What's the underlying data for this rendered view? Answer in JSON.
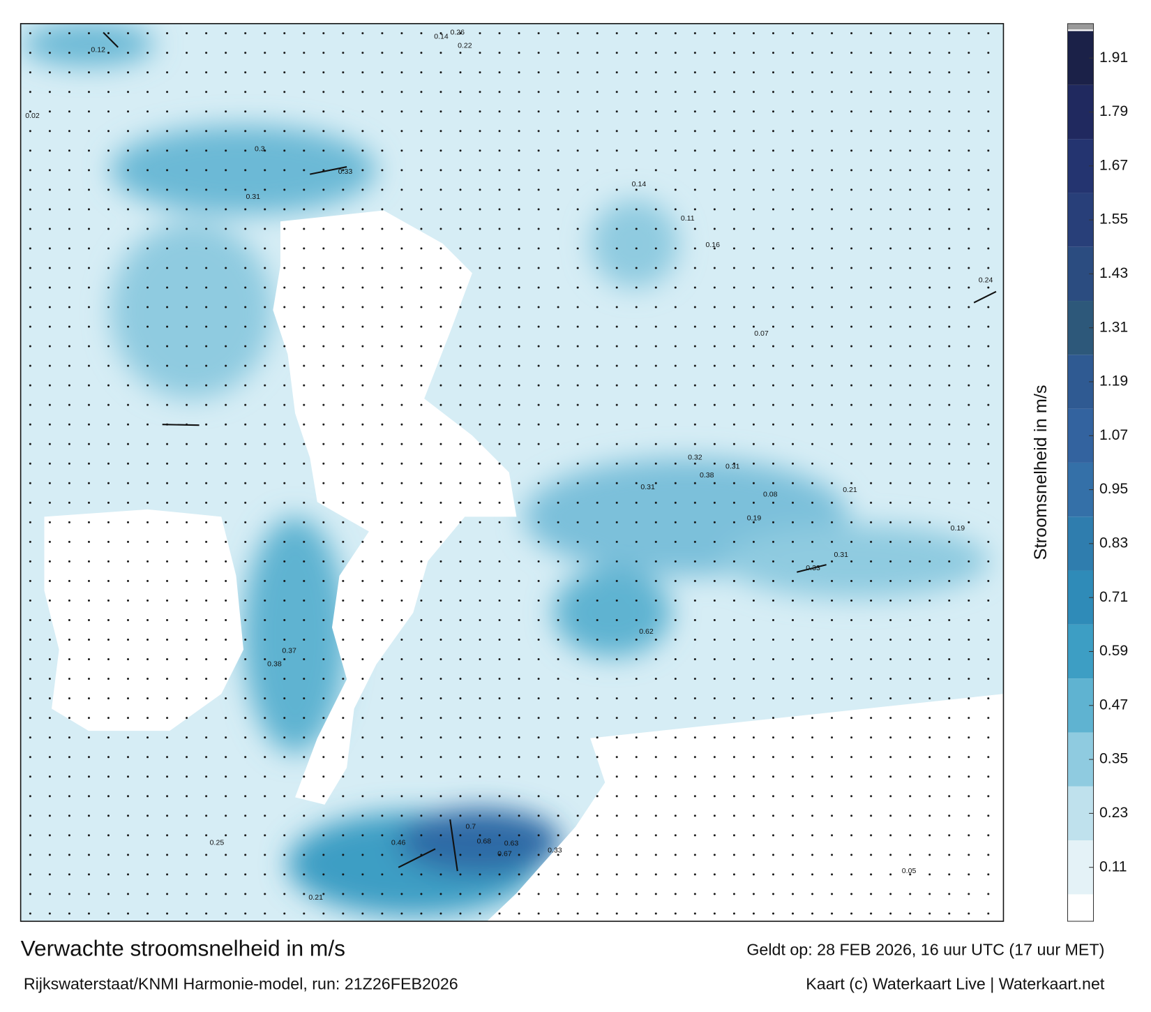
{
  "map": {
    "title": "Verwachte stroomsnelheid in m/s",
    "subtitle": "Rijkswaterstaat/KNMI Harmonie-model, run: 21Z26FEB2026",
    "valid_time": "Geldt op: 28 FEB 2026, 16 uur UTC (17 uur MET)",
    "credit": "Kaart (c) Waterkaart Live | Waterkaart.net",
    "colorbar": {
      "label": "Stroomsnelheid in m/s",
      "lim": [
        -0.01,
        1.98
      ],
      "ticks": [
        0.11,
        0.23,
        0.35,
        0.47,
        0.59,
        0.71,
        0.83,
        0.95,
        1.07,
        1.19,
        1.31,
        1.43,
        1.55,
        1.67,
        1.79,
        1.91
      ],
      "colors": [
        "#e4f2f7",
        "#bfe1ed",
        "#8fcbe0",
        "#5fb3d1",
        "#3d9ec4",
        "#2f8bb8",
        "#2f7dae",
        "#3470a8",
        "#33639f",
        "#2f5a92",
        "#2d587a",
        "#2b4c80",
        "#283f79",
        "#243470",
        "#20295f",
        "#1b2148"
      ]
    },
    "speed_labels": [
      0.26,
      0.14,
      0.22,
      0.3,
      0.33,
      0.31,
      0.14,
      0.11,
      0.16,
      0.07,
      0.32,
      0.31,
      0.38,
      0.31,
      0.21,
      0.19,
      0.31,
      0.33,
      0.62,
      0.7,
      0.68,
      0.67,
      0.63,
      0.33,
      0.46,
      0.21,
      0.25,
      0.38,
      0.37,
      0.12,
      0.02,
      0.24,
      0.19,
      0.08,
      0.05
    ]
  }
}
